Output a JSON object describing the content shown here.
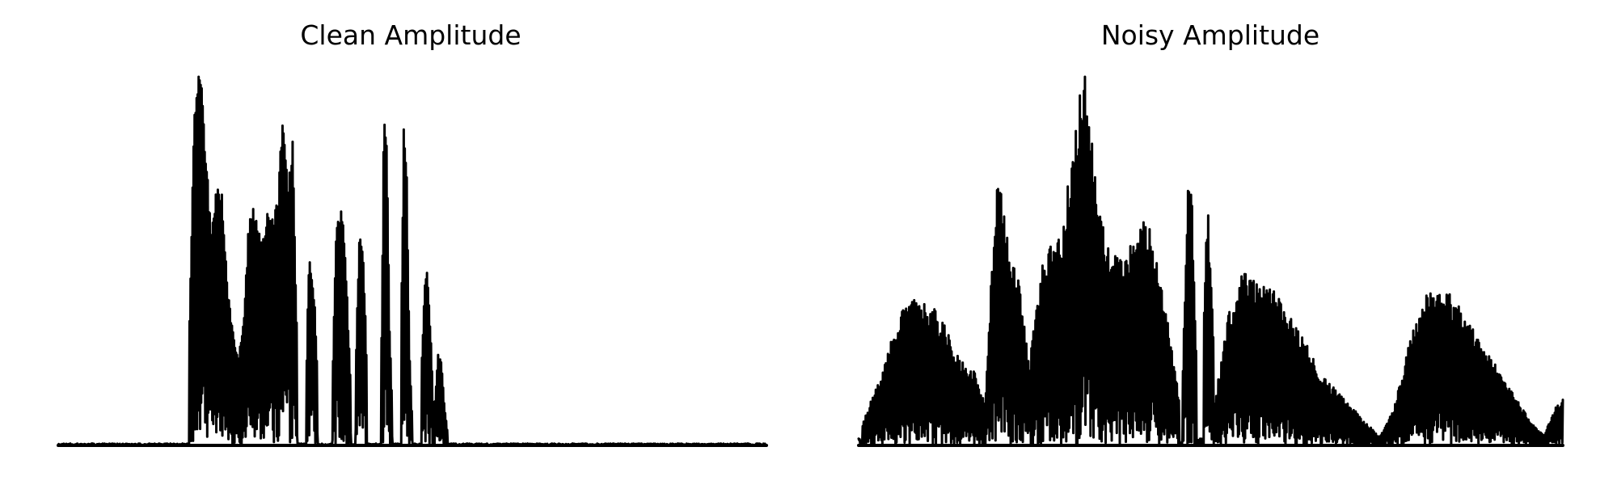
{
  "colors": {
    "background": "#ffffff",
    "waveform": "#000000"
  },
  "chart_data": [
    {
      "type": "line",
      "title": "Clean Amplitude",
      "xlabel": "",
      "ylabel": "",
      "axes_visible": false,
      "grid": false,
      "legend": "none",
      "x_range": [
        0,
        1
      ],
      "ylim": [
        0,
        1
      ],
      "envelope": {
        "baseline": 0.005,
        "bursts": [
          {
            "start": 0.185,
            "end": 0.262,
            "shape": [
              0.3,
              0.92,
              1.0,
              0.78,
              0.56,
              0.68,
              0.66,
              0.42,
              0.3,
              0.22,
              0.34
            ]
          },
          {
            "start": 0.262,
            "end": 0.338,
            "shape": [
              0.32,
              0.58,
              0.62,
              0.56,
              0.55,
              0.62,
              0.6,
              0.64,
              0.9,
              0.66,
              0.82,
              0.2
            ]
          },
          {
            "start": 0.35,
            "end": 0.366,
            "shape": [
              0.15,
              0.5,
              0.46,
              0.38,
              0.18
            ]
          },
          {
            "start": 0.387,
            "end": 0.413,
            "shape": [
              0.15,
              0.55,
              0.62,
              0.6,
              0.4,
              0.15
            ]
          },
          {
            "start": 0.42,
            "end": 0.436,
            "shape": [
              0.2,
              0.58,
              0.52,
              0.2
            ]
          },
          {
            "start": 0.456,
            "end": 0.472,
            "shape": [
              0.2,
              0.9,
              0.78,
              0.3,
              0.08
            ]
          },
          {
            "start": 0.484,
            "end": 0.5,
            "shape": [
              0.3,
              0.86,
              0.74,
              0.25,
              0.06
            ]
          },
          {
            "start": 0.513,
            "end": 0.53,
            "shape": [
              0.2,
              0.44,
              0.46,
              0.3,
              0.08
            ]
          },
          {
            "start": 0.532,
            "end": 0.55,
            "shape": [
              0.12,
              0.24,
              0.22,
              0.1,
              0.03
            ]
          }
        ]
      }
    },
    {
      "type": "line",
      "title": "Noisy Amplitude",
      "xlabel": "",
      "ylabel": "",
      "axes_visible": false,
      "grid": false,
      "legend": "none",
      "x_range": [
        0,
        1
      ],
      "ylim": [
        0,
        1
      ],
      "envelope": {
        "baseline": 0.02,
        "bursts": [
          {
            "start": 0.005,
            "end": 0.18,
            "shape": [
              0.05,
              0.12,
              0.18,
              0.28,
              0.34,
              0.38,
              0.35,
              0.34,
              0.3,
              0.24,
              0.2,
              0.18,
              0.1
            ]
          },
          {
            "start": 0.18,
            "end": 0.245,
            "shape": [
              0.1,
              0.45,
              0.7,
              0.55,
              0.45,
              0.44,
              0.3,
              0.15
            ]
          },
          {
            "start": 0.245,
            "end": 0.455,
            "shape": [
              0.25,
              0.46,
              0.5,
              0.56,
              0.74,
              0.96,
              0.68,
              0.52,
              0.48,
              0.46,
              0.54,
              0.56,
              0.44,
              0.3,
              0.12
            ]
          },
          {
            "start": 0.46,
            "end": 0.48,
            "shape": [
              0.15,
              0.66,
              0.62,
              0.2
            ]
          },
          {
            "start": 0.49,
            "end": 0.505,
            "shape": [
              0.3,
              0.62,
              0.46,
              0.2
            ]
          },
          {
            "start": 0.505,
            "end": 0.74,
            "shape": [
              0.1,
              0.34,
              0.44,
              0.4,
              0.38,
              0.32,
              0.26,
              0.18,
              0.14,
              0.1,
              0.06,
              0.02
            ]
          },
          {
            "start": 0.74,
            "end": 0.975,
            "shape": [
              0.02,
              0.1,
              0.26,
              0.38,
              0.4,
              0.36,
              0.3,
              0.24,
              0.18,
              0.12,
              0.06,
              0.02
            ]
          },
          {
            "start": 0.972,
            "end": 1.0,
            "shape": [
              0.02,
              0.06,
              0.1,
              0.12
            ]
          }
        ]
      }
    }
  ]
}
